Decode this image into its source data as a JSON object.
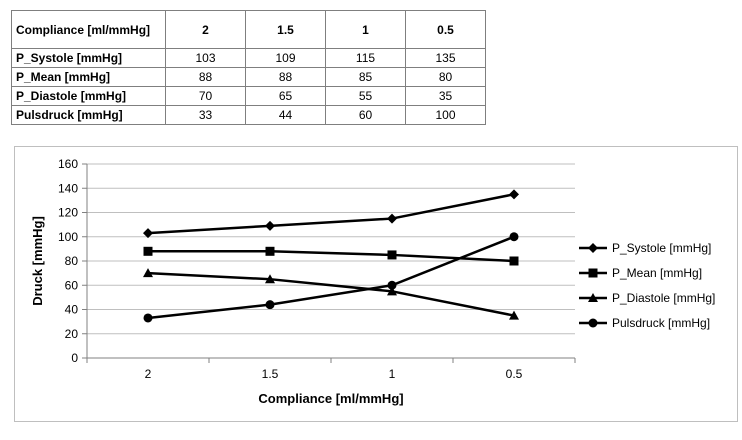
{
  "table": {
    "header_label": "Compliance [ml/mmHg]",
    "columns": [
      "2",
      "1.5",
      "1",
      "0.5"
    ],
    "rows": [
      {
        "label": "P_Systole [mmHg]",
        "values": [
          "103",
          "109",
          "115",
          "135"
        ]
      },
      {
        "label": "P_Mean [mmHg]",
        "values": [
          "88",
          "88",
          "85",
          "80"
        ]
      },
      {
        "label": "P_Diastole [mmHg]",
        "values": [
          "70",
          "65",
          "55",
          "35"
        ]
      },
      {
        "label": "Pulsdruck [mmHg]",
        "values": [
          "33",
          "44",
          "60",
          "100"
        ]
      }
    ]
  },
  "chart_data": {
    "type": "line",
    "categories": [
      "2",
      "1.5",
      "1",
      "0.5"
    ],
    "series": [
      {
        "name": "P_Systole [mmHg]",
        "values": [
          103,
          109,
          115,
          135
        ],
        "marker": "diamond"
      },
      {
        "name": "P_Mean [mmHg]",
        "values": [
          88,
          88,
          85,
          80
        ],
        "marker": "square"
      },
      {
        "name": "P_Diastole [mmHg]",
        "values": [
          70,
          65,
          55,
          35
        ],
        "marker": "triangle"
      },
      {
        "name": "Pulsdruck [mmHg]",
        "values": [
          33,
          44,
          60,
          100
        ],
        "marker": "circle"
      }
    ],
    "xlabel": "Compliance [ml/mmHg]",
    "ylabel": "Druck [mmHg]",
    "ylim": [
      0,
      160
    ],
    "yticks": [
      0,
      20,
      40,
      60,
      80,
      100,
      120,
      140,
      160
    ],
    "grid": true,
    "legend": "right",
    "line_color": "#000000",
    "grid_color": "#bfbfbf"
  }
}
